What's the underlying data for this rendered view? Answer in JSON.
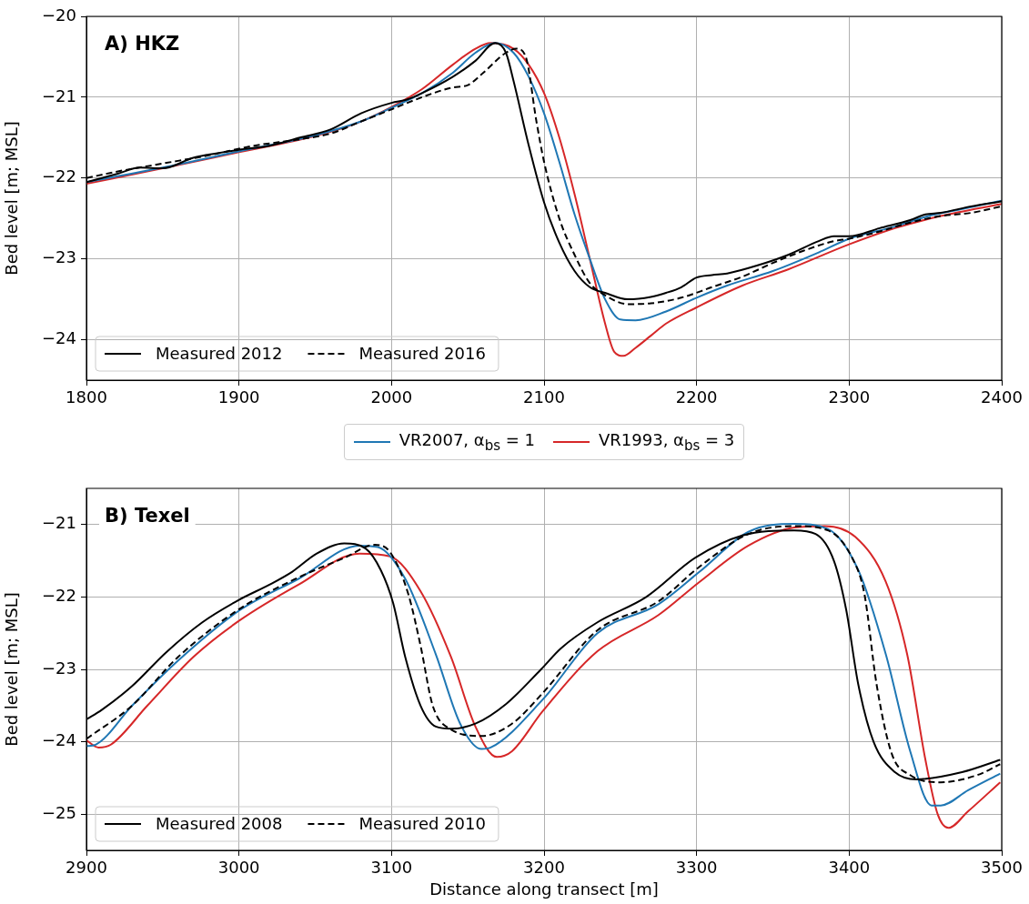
{
  "chart_data": [
    {
      "type": "line",
      "title": "A) HKZ",
      "ylabel": "Bed level [m; MSL]",
      "xlim": [
        1800,
        2400
      ],
      "xticks": [
        1800,
        1900,
        2000,
        2100,
        2200,
        2300,
        2400
      ],
      "ylim": [
        -24.5,
        -20
      ],
      "yticks": [
        {
          "value": -20,
          "label": "−20"
        },
        {
          "value": -21,
          "label": "−21"
        },
        {
          "value": -22,
          "label": "−22"
        },
        {
          "value": -23,
          "label": "−23"
        },
        {
          "value": -24,
          "label": "−24"
        }
      ],
      "grid": true,
      "legend": "bottom left",
      "series": [
        {
          "name": "Measured 2012",
          "color": "#000000",
          "line_style": "solid",
          "x": [
            1800,
            1820,
            1835,
            1850,
            1870,
            1880,
            1900,
            1920,
            1940,
            1960,
            1980,
            2000,
            2010,
            2020,
            2040,
            2055,
            2068,
            2075,
            2080,
            2090,
            2100,
            2110,
            2120,
            2130,
            2140,
            2155,
            2170,
            2180,
            2190,
            2200,
            2210,
            2220,
            2240,
            2260,
            2280,
            2290,
            2300,
            2320,
            2340,
            2350,
            2360,
            2380,
            2400
          ],
          "values": [
            -22.05,
            -21.95,
            -21.87,
            -21.88,
            -21.75,
            -21.71,
            -21.65,
            -21.6,
            -21.5,
            -21.4,
            -21.2,
            -21.07,
            -21.03,
            -20.95,
            -20.75,
            -20.55,
            -20.33,
            -20.45,
            -20.8,
            -21.6,
            -22.3,
            -22.8,
            -23.15,
            -23.35,
            -23.42,
            -23.5,
            -23.47,
            -23.42,
            -23.35,
            -23.23,
            -23.2,
            -23.18,
            -23.08,
            -22.95,
            -22.78,
            -22.72,
            -22.72,
            -22.62,
            -22.52,
            -22.45,
            -22.43,
            -22.35,
            -22.29
          ]
        },
        {
          "name": "Measured 2016",
          "color": "#000000",
          "line_style": "dashed",
          "x": [
            1800,
            1820,
            1850,
            1880,
            1910,
            1940,
            1960,
            1980,
            2000,
            2020,
            2040,
            2050,
            2060,
            2075,
            2082,
            2088,
            2095,
            2100,
            2110,
            2120,
            2130,
            2140,
            2155,
            2170,
            2190,
            2210,
            2230,
            2250,
            2270,
            2290,
            2300,
            2320,
            2340,
            2360,
            2380,
            2400
          ],
          "values": [
            -22.0,
            -21.92,
            -21.82,
            -21.72,
            -21.6,
            -21.52,
            -21.45,
            -21.3,
            -21.15,
            -21.0,
            -20.88,
            -20.85,
            -20.7,
            -20.45,
            -20.4,
            -20.5,
            -21.3,
            -21.8,
            -22.5,
            -22.95,
            -23.3,
            -23.45,
            -23.56,
            -23.55,
            -23.48,
            -23.35,
            -23.22,
            -23.05,
            -22.9,
            -22.78,
            -22.75,
            -22.66,
            -22.55,
            -22.47,
            -22.43,
            -22.35
          ]
        },
        {
          "name": "VR2007, α$_{bs}$ =  1",
          "color": "#1f77b4",
          "line_style": "solid",
          "x": [
            1800,
            1850,
            1900,
            1950,
            1980,
            2000,
            2020,
            2040,
            2055,
            2068,
            2080,
            2090,
            2100,
            2110,
            2120,
            2130,
            2140,
            2150,
            2160,
            2180,
            2200,
            2220,
            2250,
            2280,
            2300,
            2330,
            2350,
            2375,
            2400
          ],
          "values": [
            -22.05,
            -21.87,
            -21.67,
            -21.47,
            -21.3,
            -21.13,
            -20.95,
            -20.7,
            -20.45,
            -20.33,
            -20.45,
            -20.75,
            -21.2,
            -21.8,
            -22.45,
            -23.0,
            -23.5,
            -23.75,
            -23.76,
            -23.65,
            -23.48,
            -23.33,
            -23.15,
            -22.92,
            -22.75,
            -22.6,
            -22.48,
            -22.38,
            -22.28
          ]
        },
        {
          "name": "VR1993, α$_{bs}$ =  3",
          "color": "#d62728",
          "line_style": "solid",
          "x": [
            1800,
            1850,
            1900,
            1950,
            1980,
            2000,
            2020,
            2040,
            2055,
            2065,
            2080,
            2090,
            2100,
            2110,
            2120,
            2130,
            2140,
            2146,
            2152,
            2160,
            2170,
            2180,
            2200,
            2230,
            2260,
            2300,
            2330,
            2360,
            2400
          ],
          "values": [
            -22.07,
            -21.88,
            -21.68,
            -21.48,
            -21.3,
            -21.12,
            -20.9,
            -20.6,
            -20.4,
            -20.33,
            -20.4,
            -20.6,
            -20.95,
            -21.5,
            -22.2,
            -23.0,
            -23.8,
            -24.15,
            -24.2,
            -24.1,
            -23.95,
            -23.8,
            -23.6,
            -23.33,
            -23.13,
            -22.82,
            -22.62,
            -22.47,
            -22.32
          ]
        }
      ]
    },
    {
      "type": "line",
      "title": "B) Texel",
      "xlabel": "Distance along transect [m]",
      "ylabel": "Bed level [m; MSL]",
      "xlim": [
        2900,
        3500
      ],
      "xticks": [
        2900,
        3000,
        3100,
        3200,
        3300,
        3400,
        3500
      ],
      "ylim": [
        -25.5,
        -20.5
      ],
      "yticks": [
        {
          "value": -21,
          "label": "−21"
        },
        {
          "value": -22,
          "label": "−22"
        },
        {
          "value": -23,
          "label": "−23"
        },
        {
          "value": -24,
          "label": "−24"
        },
        {
          "value": -25,
          "label": "−25"
        }
      ],
      "grid": true,
      "legend": "bottom left",
      "series": [
        {
          "name": "Measured 2008",
          "color": "#000000",
          "line_style": "solid",
          "x": [
            2900,
            2910,
            2930,
            2952,
            2976,
            3000,
            3020,
            3035,
            3051,
            3069,
            3083,
            3093,
            3101,
            3109,
            3119,
            3129,
            3139,
            3155,
            3175,
            3198,
            3211,
            3235,
            3267,
            3299,
            3330,
            3364,
            3378,
            3390,
            3398,
            3406,
            3416,
            3430,
            3444,
            3474,
            3499
          ],
          "values": [
            -23.69,
            -23.56,
            -23.23,
            -22.77,
            -22.35,
            -22.04,
            -21.83,
            -21.65,
            -21.4,
            -21.26,
            -21.33,
            -21.63,
            -22.08,
            -22.83,
            -23.5,
            -23.79,
            -23.82,
            -23.75,
            -23.48,
            -23.0,
            -22.71,
            -22.35,
            -22.0,
            -21.46,
            -21.15,
            -21.08,
            -21.13,
            -21.5,
            -22.17,
            -23.21,
            -24.0,
            -24.42,
            -24.52,
            -24.42,
            -24.25
          ]
        },
        {
          "name": "Measured 2010",
          "color": "#000000",
          "line_style": "dashed",
          "x": [
            2900,
            2930,
            2960,
            3000,
            3039,
            3069,
            3089,
            3099,
            3111,
            3119,
            3127,
            3139,
            3159,
            3179,
            3199,
            3235,
            3275,
            3302,
            3334,
            3364,
            3386,
            3402,
            3410,
            3418,
            3428,
            3440,
            3460,
            3484,
            3499
          ],
          "values": [
            -23.96,
            -23.5,
            -22.83,
            -22.17,
            -21.73,
            -21.46,
            -21.28,
            -21.38,
            -21.96,
            -22.67,
            -23.5,
            -23.83,
            -23.92,
            -23.75,
            -23.33,
            -22.46,
            -22.06,
            -21.58,
            -21.13,
            -21.02,
            -21.08,
            -21.46,
            -21.96,
            -23.21,
            -24.17,
            -24.46,
            -24.56,
            -24.46,
            -24.31
          ]
        },
        {
          "color": "#1f77b4",
          "line_style": "solid",
          "x": [
            2900,
            2906,
            2930,
            2960,
            3000,
            3039,
            3079,
            3091,
            3109,
            3129,
            3145,
            3159,
            3165,
            3199,
            3235,
            3275,
            3302,
            3334,
            3364,
            3386,
            3406,
            3424,
            3440,
            3454,
            3460,
            3478,
            3499
          ],
          "values": [
            -24.06,
            -24.04,
            -23.5,
            -22.88,
            -22.19,
            -21.75,
            -21.29,
            -21.31,
            -21.75,
            -22.79,
            -23.75,
            -24.1,
            -24.08,
            -23.42,
            -22.5,
            -22.1,
            -21.65,
            -21.1,
            -20.99,
            -21.06,
            -21.63,
            -22.79,
            -24.13,
            -24.88,
            -24.88,
            -24.67,
            -24.44
          ]
        },
        {
          "color": "#d62728",
          "line_style": "solid",
          "x": [
            2900,
            2908,
            2916,
            2940,
            2970,
            3000,
            3039,
            3079,
            3099,
            3119,
            3139,
            3155,
            3169,
            3179,
            3199,
            3235,
            3275,
            3302,
            3334,
            3364,
            3384,
            3404,
            3424,
            3438,
            3450,
            3458,
            3465,
            3478,
            3499
          ],
          "values": [
            -23.98,
            -24.08,
            -24.04,
            -23.5,
            -22.83,
            -22.33,
            -21.83,
            -21.4,
            -21.44,
            -21.92,
            -22.83,
            -23.79,
            -24.21,
            -24.13,
            -23.58,
            -22.75,
            -22.25,
            -21.79,
            -21.29,
            -21.04,
            -21.02,
            -21.17,
            -21.79,
            -22.79,
            -24.25,
            -25.0,
            -25.19,
            -24.96,
            -24.56
          ]
        }
      ]
    }
  ]
}
